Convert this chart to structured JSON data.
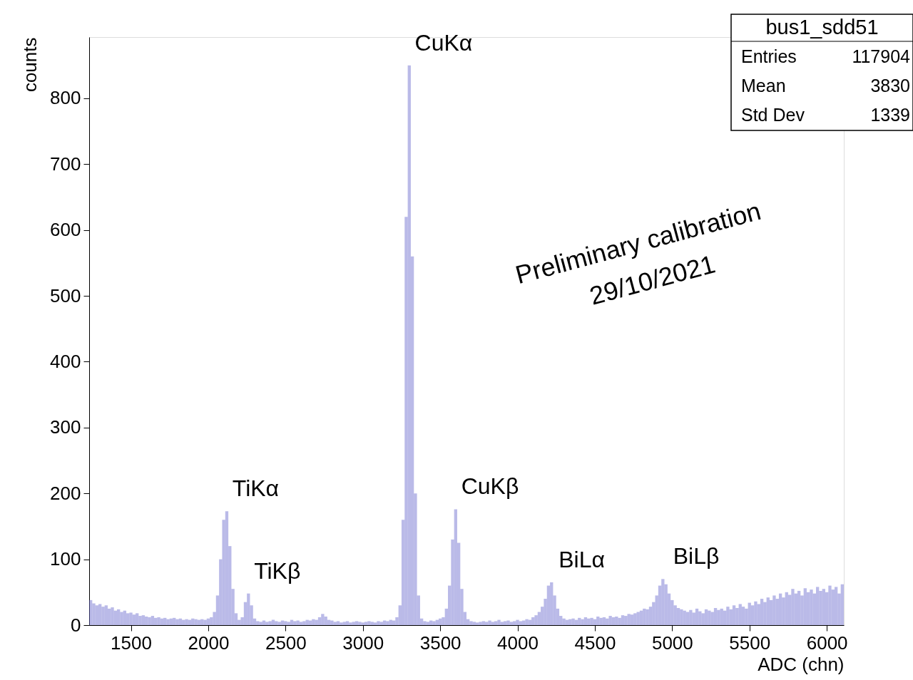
{
  "chart_data": {
    "type": "histogram",
    "xlabel": "ADC (chn)",
    "ylabel": "counts",
    "color": "#6666cc",
    "bins": [
      1230,
      1250,
      1270,
      1290,
      1310,
      1330,
      1350,
      1370,
      1390,
      1410,
      1430,
      1450,
      1470,
      1490,
      1510,
      1530,
      1550,
      1570,
      1590,
      1610,
      1630,
      1650,
      1670,
      1690,
      1710,
      1730,
      1750,
      1770,
      1790,
      1810,
      1830,
      1850,
      1870,
      1890,
      1910,
      1930,
      1950,
      1970,
      1990,
      2010,
      2030,
      2050,
      2070,
      2090,
      2110,
      2130,
      2150,
      2170,
      2190,
      2210,
      2230,
      2250,
      2270,
      2290,
      2310,
      2330,
      2350,
      2370,
      2390,
      2410,
      2430,
      2450,
      2470,
      2490,
      2510,
      2530,
      2550,
      2570,
      2590,
      2610,
      2630,
      2650,
      2670,
      2690,
      2710,
      2730,
      2750,
      2770,
      2790,
      2810,
      2830,
      2850,
      2870,
      2890,
      2910,
      2930,
      2950,
      2970,
      2990,
      3010,
      3030,
      3050,
      3070,
      3090,
      3110,
      3130,
      3150,
      3170,
      3190,
      3210,
      3230,
      3250,
      3270,
      3290,
      3310,
      3330,
      3350,
      3370,
      3390,
      3410,
      3430,
      3450,
      3470,
      3490,
      3510,
      3530,
      3550,
      3570,
      3590,
      3610,
      3630,
      3650,
      3670,
      3690,
      3710,
      3730,
      3750,
      3770,
      3790,
      3810,
      3830,
      3850,
      3870,
      3890,
      3910,
      3930,
      3950,
      3970,
      3990,
      4010,
      4030,
      4050,
      4070,
      4090,
      4110,
      4130,
      4150,
      4170,
      4190,
      4210,
      4230,
      4250,
      4270,
      4290,
      4310,
      4330,
      4350,
      4370,
      4390,
      4410,
      4430,
      4450,
      4470,
      4490,
      4510,
      4530,
      4550,
      4570,
      4590,
      4610,
      4630,
      4650,
      4670,
      4690,
      4710,
      4730,
      4750,
      4770,
      4790,
      4810,
      4830,
      4850,
      4870,
      4890,
      4910,
      4930,
      4950,
      4970,
      4990,
      5010,
      5030,
      5050,
      5070,
      5090,
      5110,
      5130,
      5150,
      5170,
      5190,
      5210,
      5230,
      5250,
      5270,
      5290,
      5310,
      5330,
      5350,
      5370,
      5390,
      5410,
      5430,
      5450,
      5470,
      5490,
      5510,
      5530,
      5550,
      5570,
      5590,
      5610,
      5630,
      5650,
      5670,
      5690,
      5710,
      5730,
      5750,
      5770,
      5790,
      5810,
      5830,
      5850,
      5870,
      5890,
      5910,
      5930,
      5950,
      5970,
      5990,
      6010,
      6030,
      6050,
      6070,
      6090,
      6110
    ],
    "values": [
      38,
      33,
      30,
      32,
      28,
      30,
      25,
      27,
      22,
      24,
      20,
      22,
      18,
      19,
      16,
      18,
      14,
      15,
      13,
      12,
      14,
      11,
      12,
      10,
      11,
      9,
      10,
      11,
      9,
      10,
      8,
      9,
      8,
      10,
      9,
      8,
      9,
      8,
      10,
      12,
      20,
      45,
      100,
      160,
      173,
      120,
      55,
      18,
      8,
      12,
      35,
      48,
      30,
      10,
      6,
      5,
      7,
      5,
      6,
      8,
      6,
      5,
      7,
      6,
      5,
      8,
      6,
      7,
      5,
      6,
      8,
      7,
      9,
      8,
      12,
      17,
      13,
      8,
      7,
      5,
      6,
      4,
      5,
      6,
      4,
      5,
      6,
      5,
      4,
      5,
      6,
      5,
      4,
      6,
      5,
      7,
      6,
      8,
      7,
      12,
      30,
      160,
      620,
      850,
      560,
      200,
      45,
      10,
      6,
      5,
      7,
      6,
      8,
      10,
      12,
      25,
      60,
      130,
      176,
      125,
      55,
      20,
      9,
      6,
      5,
      4,
      5,
      6,
      5,
      7,
      5,
      6,
      8,
      5,
      6,
      7,
      5,
      6,
      8,
      6,
      7,
      9,
      8,
      12,
      15,
      20,
      28,
      40,
      60,
      65,
      45,
      25,
      14,
      10,
      8,
      9,
      10,
      8,
      11,
      9,
      12,
      10,
      11,
      9,
      13,
      11,
      12,
      10,
      14,
      12,
      13,
      11,
      15,
      14,
      17,
      16,
      18,
      20,
      22,
      25,
      24,
      28,
      35,
      45,
      60,
      70,
      62,
      48,
      38,
      30,
      26,
      24,
      22,
      20,
      23,
      19,
      25,
      21,
      18,
      24,
      22,
      20,
      26,
      23,
      25,
      22,
      28,
      24,
      30,
      26,
      32,
      28,
      25,
      34,
      30,
      36,
      32,
      40,
      35,
      42,
      38,
      45,
      40,
      48,
      42,
      50,
      46,
      55,
      48,
      52,
      45,
      56,
      50,
      54,
      48,
      58,
      52,
      55,
      50,
      60,
      54,
      58,
      48,
      62
    ],
    "xlim": [
      1230,
      6110
    ],
    "ylim": [
      0,
      893
    ],
    "xticks": [
      1500,
      2000,
      2500,
      3000,
      3500,
      4000,
      4500,
      5000,
      5500,
      6000
    ],
    "yticks": [
      0,
      100,
      200,
      300,
      400,
      500,
      600,
      700,
      800
    ],
    "grid": false,
    "annotations": [
      {
        "text": "TiKα",
        "x": 2110,
        "y": 173
      },
      {
        "text": "TiKβ",
        "x": 2250,
        "y": 48
      },
      {
        "text": "CuKα",
        "x": 3290,
        "y": 850
      },
      {
        "text": "CuKβ",
        "x": 3590,
        "y": 176
      },
      {
        "text": "BiLα",
        "x": 4220,
        "y": 65
      },
      {
        "text": "BiLβ",
        "x": 4960,
        "y": 70
      },
      "Preliminary calibration",
      "29/10/2021",
      "bus1_sdd51",
      "Entries",
      "117904",
      "Mean",
      "3830",
      "Std Dev",
      "1339"
    ]
  }
}
